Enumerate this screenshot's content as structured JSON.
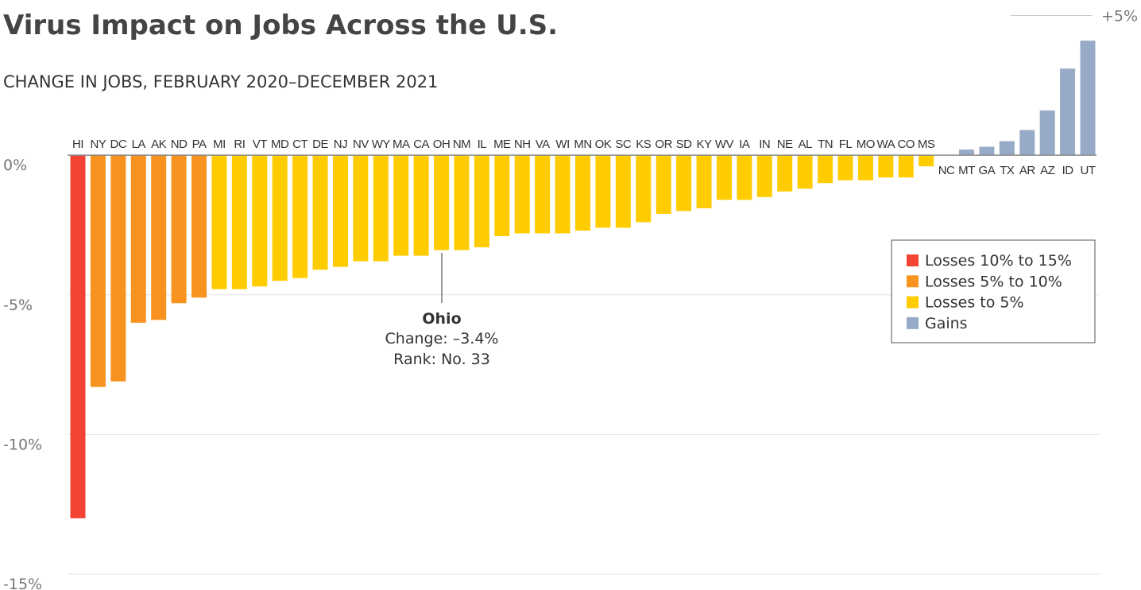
{
  "chart_data": {
    "type": "bar",
    "title": "Virus Impact on Jobs Across the U.S.",
    "subtitle": "CHANGE IN JOBS, FEBRUARY 2020–DECEMBER 2021",
    "categories": [
      "HI",
      "NY",
      "DC",
      "LA",
      "AK",
      "ND",
      "PA",
      "MI",
      "RI",
      "VT",
      "MD",
      "CT",
      "DE",
      "NJ",
      "NV",
      "WY",
      "MA",
      "CA",
      "OH",
      "NM",
      "IL",
      "ME",
      "NH",
      "VA",
      "WI",
      "MN",
      "OK",
      "SC",
      "KS",
      "OR",
      "SD",
      "KY",
      "WV",
      "IA",
      "IN",
      "NE",
      "AL",
      "TN",
      "FL",
      "MO",
      "WA",
      "CO",
      "MS",
      "NC",
      "MT",
      "GA",
      "TX",
      "AR",
      "AZ",
      "ID",
      "UT"
    ],
    "values": [
      -13.0,
      -8.3,
      -8.1,
      -6.0,
      -5.9,
      -5.3,
      -5.1,
      -4.8,
      -4.8,
      -4.7,
      -4.5,
      -4.4,
      -4.1,
      -4.0,
      -3.8,
      -3.8,
      -3.6,
      -3.6,
      -3.4,
      -3.4,
      -3.3,
      -2.9,
      -2.8,
      -2.8,
      -2.8,
      -2.7,
      -2.6,
      -2.6,
      -2.4,
      -2.1,
      -2.0,
      -1.9,
      -1.6,
      -1.6,
      -1.5,
      -1.3,
      -1.2,
      -1.0,
      -0.9,
      -0.9,
      -0.8,
      -0.8,
      -0.4,
      0.0,
      0.2,
      0.3,
      0.5,
      0.9,
      1.6,
      3.1,
      4.1
    ],
    "colors": [
      "#f24333",
      "#f7931e",
      "#f7931e",
      "#f7931e",
      "#f7931e",
      "#f7931e",
      "#f7931e",
      "#ffcc00",
      "#ffcc00",
      "#ffcc00",
      "#ffcc00",
      "#ffcc00",
      "#ffcc00",
      "#ffcc00",
      "#ffcc00",
      "#ffcc00",
      "#ffcc00",
      "#ffcc00",
      "#ffcc00",
      "#ffcc00",
      "#ffcc00",
      "#ffcc00",
      "#ffcc00",
      "#ffcc00",
      "#ffcc00",
      "#ffcc00",
      "#ffcc00",
      "#ffcc00",
      "#ffcc00",
      "#ffcc00",
      "#ffcc00",
      "#ffcc00",
      "#ffcc00",
      "#ffcc00",
      "#ffcc00",
      "#ffcc00",
      "#ffcc00",
      "#ffcc00",
      "#ffcc00",
      "#ffcc00",
      "#ffcc00",
      "#ffcc00",
      "#ffcc00",
      "#97abc8",
      "#97abc8",
      "#97abc8",
      "#97abc8",
      "#97abc8",
      "#97abc8",
      "#97abc8",
      "#97abc8"
    ],
    "ylim": [
      -15,
      5
    ],
    "yticks": [
      {
        "value": 5,
        "label": "+5%"
      },
      {
        "value": 0,
        "label": "0%"
      },
      {
        "value": -5,
        "label": "-5%"
      },
      {
        "value": -10,
        "label": "-10%"
      },
      {
        "value": -15,
        "label": "-15%"
      }
    ],
    "grid": true,
    "legend": [
      {
        "label": "Losses 10% to 15%",
        "color": "#f24333"
      },
      {
        "label": "Losses 5% to 10%",
        "color": "#f7931e"
      },
      {
        "label": "Losses to 5%",
        "color": "#ffcc00"
      },
      {
        "label": "Gains",
        "color": "#97abc8"
      }
    ],
    "annotation": {
      "title": "Ohio",
      "lines": [
        "Change: –3.4%",
        "Rank: No. 33"
      ]
    }
  }
}
